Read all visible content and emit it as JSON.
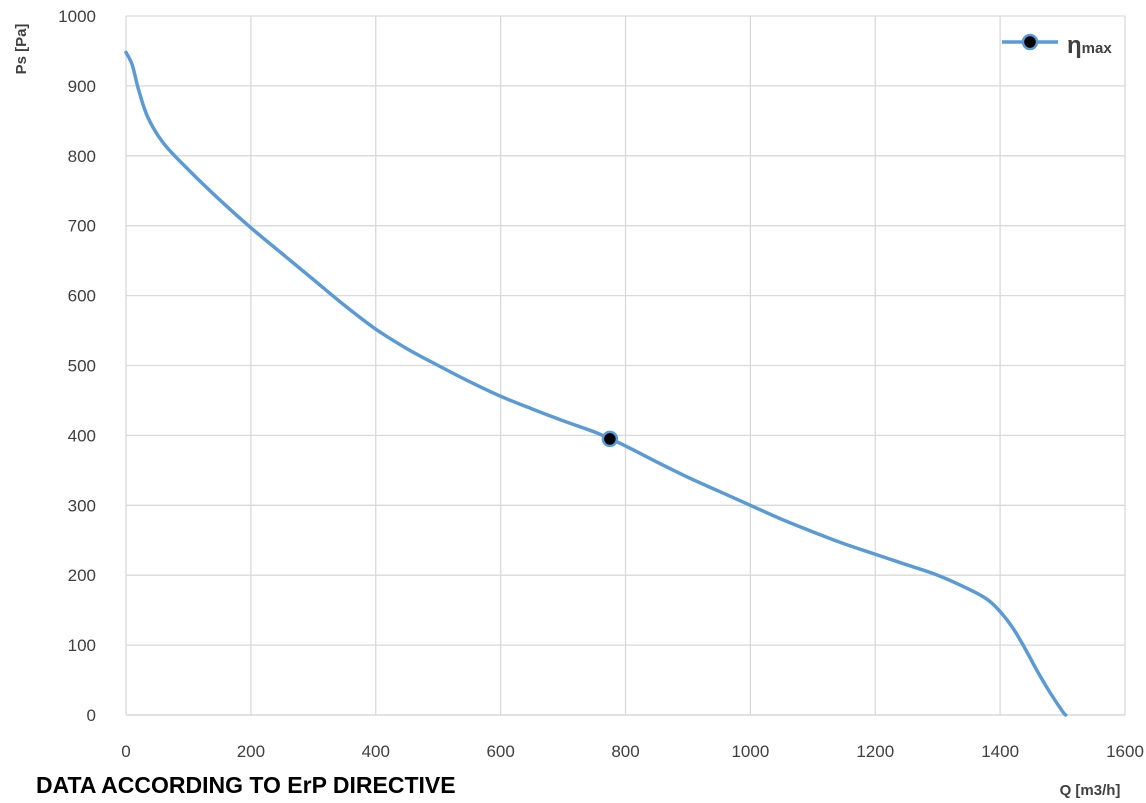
{
  "chart_data": {
    "type": "line",
    "x_label": "Q [m3/h]",
    "y_label": "Ps [Pa]",
    "xlim": [
      0,
      1600
    ],
    "ylim": [
      0,
      1000
    ],
    "x_ticks": [
      0,
      200,
      400,
      600,
      800,
      1000,
      1200,
      1400,
      1600
    ],
    "y_ticks": [
      0,
      100,
      200,
      300,
      400,
      500,
      600,
      700,
      800,
      900,
      1000
    ],
    "grid": true,
    "legend_position": "top-right",
    "series": [
      {
        "name": "ηmax",
        "color": "#5b9bd5",
        "marker_point": {
          "x": 775,
          "y": 395
        },
        "points": [
          {
            "x": 0,
            "y": 948
          },
          {
            "x": 10,
            "y": 930
          },
          {
            "x": 20,
            "y": 895
          },
          {
            "x": 35,
            "y": 855
          },
          {
            "x": 60,
            "y": 818
          },
          {
            "x": 100,
            "y": 780
          },
          {
            "x": 150,
            "y": 737
          },
          {
            "x": 200,
            "y": 697
          },
          {
            "x": 250,
            "y": 660
          },
          {
            "x": 300,
            "y": 623
          },
          {
            "x": 350,
            "y": 586
          },
          {
            "x": 400,
            "y": 552
          },
          {
            "x": 450,
            "y": 524
          },
          {
            "x": 500,
            "y": 500
          },
          {
            "x": 550,
            "y": 477
          },
          {
            "x": 600,
            "y": 456
          },
          {
            "x": 650,
            "y": 438
          },
          {
            "x": 700,
            "y": 421
          },
          {
            "x": 750,
            "y": 405
          },
          {
            "x": 775,
            "y": 395
          },
          {
            "x": 800,
            "y": 385
          },
          {
            "x": 850,
            "y": 362
          },
          {
            "x": 900,
            "y": 340
          },
          {
            "x": 950,
            "y": 320
          },
          {
            "x": 1000,
            "y": 300
          },
          {
            "x": 1050,
            "y": 280
          },
          {
            "x": 1100,
            "y": 262
          },
          {
            "x": 1150,
            "y": 245
          },
          {
            "x": 1200,
            "y": 230
          },
          {
            "x": 1250,
            "y": 215
          },
          {
            "x": 1300,
            "y": 200
          },
          {
            "x": 1350,
            "y": 180
          },
          {
            "x": 1380,
            "y": 165
          },
          {
            "x": 1400,
            "y": 148
          },
          {
            "x": 1420,
            "y": 125
          },
          {
            "x": 1440,
            "y": 95
          },
          {
            "x": 1460,
            "y": 62
          },
          {
            "x": 1480,
            "y": 32
          },
          {
            "x": 1500,
            "y": 5
          },
          {
            "x": 1505,
            "y": 0
          }
        ]
      }
    ]
  },
  "legend": {
    "eta": "η",
    "sub": "max"
  },
  "caption": "DATA ACCORDING TO ErP DIRECTIVE",
  "colors": {
    "line": "#5b9bd5",
    "marker": "#000000",
    "grid": "#d9d9d9",
    "text": "#404040"
  }
}
